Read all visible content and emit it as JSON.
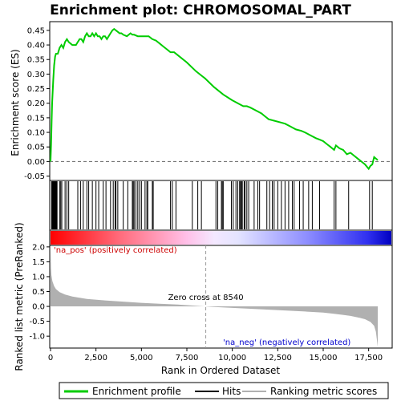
{
  "chart_data": {
    "type": "line",
    "title": "Enrichment plot: CHROMOSOMAL_PART",
    "xlabel": "Rank in Ordered Dataset",
    "ylabel_top": "Enrichment score (ES)",
    "ylabel_bottom": "Ranked list metric (PreRanked)",
    "x_ticks": [
      "0",
      "2,500",
      "5,000",
      "7,500",
      "10,000",
      "12,500",
      "15,000",
      "17,500"
    ],
    "x_tick_values": [
      0,
      2500,
      5000,
      7500,
      10000,
      12500,
      15000,
      17500
    ],
    "xlim": [
      0,
      18000
    ],
    "es_y_ticks": [
      "-0.05",
      "0.00",
      "0.05",
      "0.10",
      "0.15",
      "0.20",
      "0.25",
      "0.30",
      "0.35",
      "0.40",
      "0.45"
    ],
    "es_y_tick_values": [
      -0.05,
      0,
      0.05,
      0.1,
      0.15,
      0.2,
      0.25,
      0.3,
      0.35,
      0.4,
      0.45
    ],
    "es_ylim": [
      -0.065,
      0.48
    ],
    "metric_y_ticks": [
      "2.0",
      "1.5",
      "1.0",
      "0.5",
      "0.0",
      "-0.5",
      "-1.0"
    ],
    "metric_y_tick_values": [
      2.0,
      1.5,
      1.0,
      0.5,
      0.0,
      -0.5,
      -1.0
    ],
    "metric_ylim": [
      -1.4,
      2.05
    ],
    "zero_cross_label": "Zero cross at 8540",
    "zero_cross": 8540,
    "pos_label": "'na_pos' (positively correlated)",
    "neg_label": "'na_neg' (negatively correlated)",
    "series": [
      {
        "name": "Enrichment profile",
        "color": "#00cc00",
        "x": [
          0,
          30,
          60,
          90,
          120,
          150,
          200,
          250,
          300,
          400,
          500,
          600,
          700,
          800,
          900,
          1000,
          1200,
          1400,
          1500,
          1600,
          1700,
          1800,
          1900,
          2000,
          2100,
          2200,
          2300,
          2400,
          2500,
          2600,
          2700,
          2800,
          2900,
          3000,
          3100,
          3200,
          3300,
          3400,
          3500,
          3600,
          3700,
          3800,
          3900,
          4000,
          4200,
          4400,
          4500,
          4600,
          4800,
          5000,
          5200,
          5400,
          5600,
          5800,
          6000,
          6200,
          6400,
          6600,
          6800,
          7000,
          7500,
          8000,
          8500,
          9000,
          9500,
          10000,
          10300,
          10600,
          10800,
          11000,
          11300,
          11600,
          11800,
          12000,
          12300,
          12600,
          12900,
          13200,
          13500,
          13800,
          14000,
          14300,
          14600,
          14800,
          15000,
          15200,
          15400,
          15600,
          15700,
          15900,
          16100,
          16300,
          16500,
          16700,
          16900,
          17100,
          17300,
          17500,
          17600,
          17700,
          17800,
          18000
        ],
        "y": [
          0.0,
          0.06,
          0.14,
          0.2,
          0.24,
          0.28,
          0.33,
          0.36,
          0.37,
          0.37,
          0.39,
          0.4,
          0.39,
          0.41,
          0.42,
          0.41,
          0.4,
          0.4,
          0.41,
          0.42,
          0.42,
          0.41,
          0.43,
          0.44,
          0.43,
          0.43,
          0.44,
          0.43,
          0.44,
          0.43,
          0.43,
          0.42,
          0.43,
          0.43,
          0.42,
          0.43,
          0.44,
          0.45,
          0.455,
          0.45,
          0.445,
          0.44,
          0.44,
          0.435,
          0.43,
          0.44,
          0.435,
          0.435,
          0.43,
          0.43,
          0.43,
          0.43,
          0.42,
          0.415,
          0.405,
          0.395,
          0.385,
          0.375,
          0.375,
          0.365,
          0.34,
          0.31,
          0.285,
          0.255,
          0.23,
          0.21,
          0.2,
          0.19,
          0.19,
          0.185,
          0.175,
          0.165,
          0.155,
          0.145,
          0.14,
          0.135,
          0.13,
          0.12,
          0.11,
          0.105,
          0.1,
          0.09,
          0.08,
          0.075,
          0.07,
          0.06,
          0.05,
          0.04,
          0.055,
          0.045,
          0.04,
          0.025,
          0.03,
          0.02,
          0.01,
          0.0,
          -0.01,
          -0.025,
          -0.015,
          -0.01,
          0.015,
          0.005
        ]
      },
      {
        "name": "Ranking metric scores",
        "color": "#b0b0b0",
        "x": [
          0,
          20,
          50,
          100,
          200,
          300,
          500,
          800,
          1200,
          2000,
          3000,
          4000,
          5000,
          6000,
          7000,
          8000,
          8540,
          9000,
          10000,
          11000,
          12000,
          13000,
          14000,
          15000,
          15500,
          16000,
          16500,
          17000,
          17300,
          17600,
          17800,
          17900,
          18000
        ],
        "y": [
          1.9,
          1.3,
          1.05,
          0.85,
          0.68,
          0.58,
          0.48,
          0.4,
          0.33,
          0.25,
          0.2,
          0.16,
          0.12,
          0.09,
          0.06,
          0.02,
          0.0,
          -0.02,
          -0.05,
          -0.08,
          -0.11,
          -0.14,
          -0.17,
          -0.21,
          -0.24,
          -0.28,
          -0.32,
          -0.38,
          -0.43,
          -0.52,
          -0.65,
          -0.85,
          -1.35
        ]
      }
    ],
    "hits": [
      60,
      90,
      110,
      140,
      160,
      190,
      220,
      250,
      280,
      300,
      330,
      360,
      500,
      560,
      620,
      800,
      900,
      1000,
      1500,
      1650,
      1800,
      2000,
      2100,
      2300,
      2500,
      2650,
      2900,
      3050,
      3300,
      3450,
      3550,
      3600,
      3700,
      4000,
      4250,
      4500,
      4550,
      4600,
      4700,
      4800,
      4900,
      5000,
      5200,
      5300,
      5350,
      5600,
      5650,
      6600,
      6700,
      6900,
      7800,
      8100,
      8300,
      9100,
      9200,
      9400,
      9450,
      9500,
      9950,
      10050,
      10200,
      10300,
      10400,
      10450,
      10500,
      10550,
      10650,
      10700,
      10800,
      10900,
      11200,
      11400,
      11500,
      11900,
      12050,
      12200,
      12300,
      12500,
      12700,
      12900,
      13100,
      13300,
      13400,
      13700,
      13900,
      14200,
      14400,
      14800,
      15600,
      15700,
      16400,
      17550,
      17700
    ]
  },
  "legend": {
    "items": [
      {
        "label": "Enrichment profile",
        "color": "#00cc00"
      },
      {
        "label": "Hits",
        "color": "#000000"
      },
      {
        "label": "Ranking metric scores",
        "color": "#b0b0b0"
      }
    ]
  }
}
